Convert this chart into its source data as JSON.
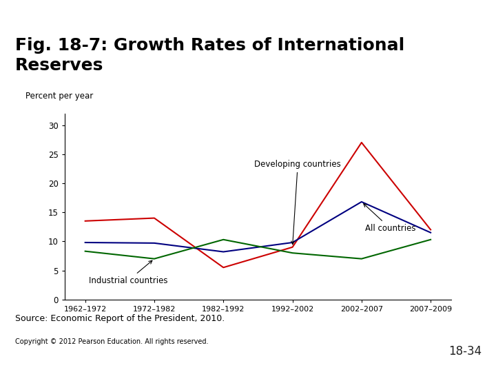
{
  "title": "Fig. 18-7: Growth Rates of International\nReserves",
  "ylabel": "Percent per year",
  "source_text": "Source: Economic Report of the President, 2010.",
  "copyright_text": "Copyright © 2012 Pearson Education. All rights reserved.",
  "page_label": "18-34",
  "x_labels": [
    "1962–1972",
    "1972–1982",
    "1982–1992",
    "1992–2002",
    "2002–2007",
    "2007–2009"
  ],
  "series": [
    {
      "name": "Developing countries",
      "color": "#cc0000",
      "values": [
        13.5,
        14.0,
        5.5,
        9.0,
        27.0,
        12.0
      ]
    },
    {
      "name": "All countries",
      "color": "#000080",
      "values": [
        9.8,
        9.7,
        8.2,
        9.8,
        16.8,
        11.5
      ]
    },
    {
      "name": "Industrial countries",
      "color": "#006600",
      "values": [
        8.3,
        7.0,
        10.3,
        8.0,
        7.0,
        10.3
      ]
    }
  ],
  "ylim": [
    0,
    32
  ],
  "yticks": [
    0,
    5,
    10,
    15,
    20,
    25,
    30
  ],
  "bg_color": "#ffffff",
  "accent_color": "#c8d96a",
  "top_bar_color": "#c8d96a",
  "title_color": "#000000",
  "title_fontsize": 18
}
